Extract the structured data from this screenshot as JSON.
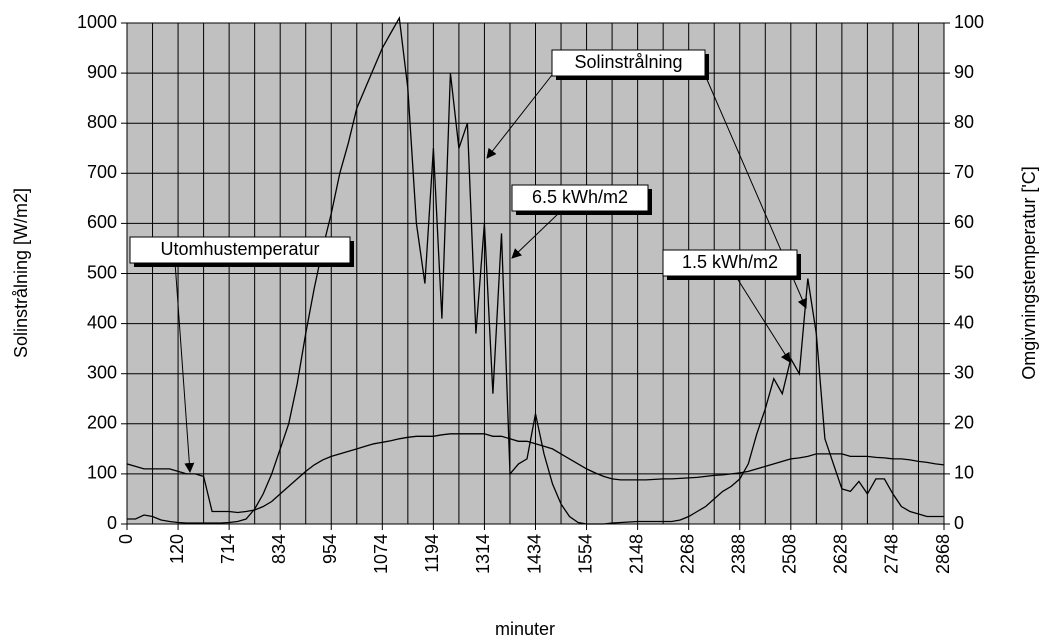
{
  "chart_data": {
    "type": "line",
    "x_label": "minuter",
    "y_label": "Solinstrålning [W/m2]",
    "y2_label": "Omgivningstemperatur ['C]",
    "categories": [
      "0",
      null,
      null,
      null,
      null,
      null,
      "120",
      null,
      null,
      null,
      null,
      null,
      "714",
      null,
      null,
      null,
      null,
      null,
      "834",
      null,
      null,
      null,
      null,
      null,
      "954",
      null,
      null,
      null,
      null,
      null,
      "1074",
      null,
      null,
      null,
      null,
      null,
      "1194",
      null,
      null,
      null,
      null,
      null,
      "1314",
      null,
      null,
      null,
      null,
      null,
      "1434",
      null,
      null,
      null,
      null,
      null,
      "1554",
      null,
      null,
      null,
      null,
      null,
      "2148",
      null,
      null,
      null,
      null,
      null,
      "2268",
      null,
      null,
      null,
      null,
      null,
      "2388",
      null,
      null,
      null,
      null,
      null,
      "2508",
      null,
      null,
      null,
      null,
      null,
      "2628",
      null,
      null,
      null,
      null,
      null,
      "2748",
      null,
      null,
      null,
      null,
      null,
      "2868"
    ],
    "series": [
      {
        "name": "Solinstrålning",
        "color": "#000000",
        "axis": "y",
        "values": [
          10,
          10,
          18,
          15,
          8,
          5,
          3,
          2,
          2,
          2,
          2,
          2,
          3,
          5,
          10,
          30,
          60,
          100,
          150,
          200,
          280,
          380,
          470,
          550,
          620,
          700,
          760,
          830,
          870,
          910,
          950,
          980,
          1010,
          870,
          600,
          480,
          750,
          410,
          900,
          750,
          800,
          380,
          600,
          260,
          580,
          100,
          120,
          130,
          220,
          140,
          80,
          40,
          15,
          3,
          0,
          0,
          0,
          2,
          3,
          4,
          5,
          5,
          5,
          5,
          5,
          8,
          15,
          25,
          35,
          50,
          65,
          75,
          90,
          120,
          180,
          230,
          290,
          260,
          330,
          300,
          490,
          380,
          170,
          120,
          70,
          65,
          85,
          60,
          90,
          90,
          60,
          35,
          25,
          20,
          15,
          15,
          15
        ]
      },
      {
        "name": "Utomhustemperatur",
        "color": "#000000",
        "axis": "y2",
        "values": [
          12,
          11.5,
          11,
          11,
          11,
          11,
          10.5,
          10,
          10,
          9.5,
          2.5,
          2.5,
          2.5,
          2.3,
          2.5,
          2.8,
          3.5,
          4.5,
          6,
          7.5,
          9,
          10.5,
          11.8,
          12.8,
          13.5,
          14,
          14.5,
          15,
          15.5,
          16,
          16.3,
          16.6,
          17,
          17.3,
          17.5,
          17.5,
          17.5,
          17.8,
          18,
          18,
          18,
          18,
          18,
          17.5,
          17.5,
          17,
          16.5,
          16.5,
          16,
          15.5,
          15,
          14,
          13,
          12,
          11,
          10.2,
          9.5,
          9,
          8.8,
          8.8,
          8.8,
          8.8,
          8.9,
          9,
          9,
          9.1,
          9.2,
          9.3,
          9.5,
          9.7,
          9.8,
          10,
          10.2,
          10.5,
          11,
          11.5,
          12,
          12.5,
          13,
          13.2,
          13.5,
          14,
          14,
          14,
          14,
          13.5,
          13.5,
          13.5,
          13.3,
          13.2,
          13,
          13,
          12.8,
          12.5,
          12.3,
          12,
          11.8
        ]
      }
    ],
    "ylim": [
      0,
      1000
    ],
    "yticks": [
      0,
      100,
      200,
      300,
      400,
      500,
      600,
      700,
      800,
      900,
      1000
    ],
    "y2lim": [
      0,
      100
    ],
    "y2ticks": [
      0,
      10,
      20,
      30,
      40,
      50,
      60,
      70,
      80,
      90,
      100
    ],
    "grid": true,
    "annotations": [
      {
        "text": "Utomhustemperatur"
      },
      {
        "text": "Solinstrålning"
      },
      {
        "text": "6.5 kWh/m2"
      },
      {
        "text": "1.5 kWh/m2"
      }
    ]
  }
}
